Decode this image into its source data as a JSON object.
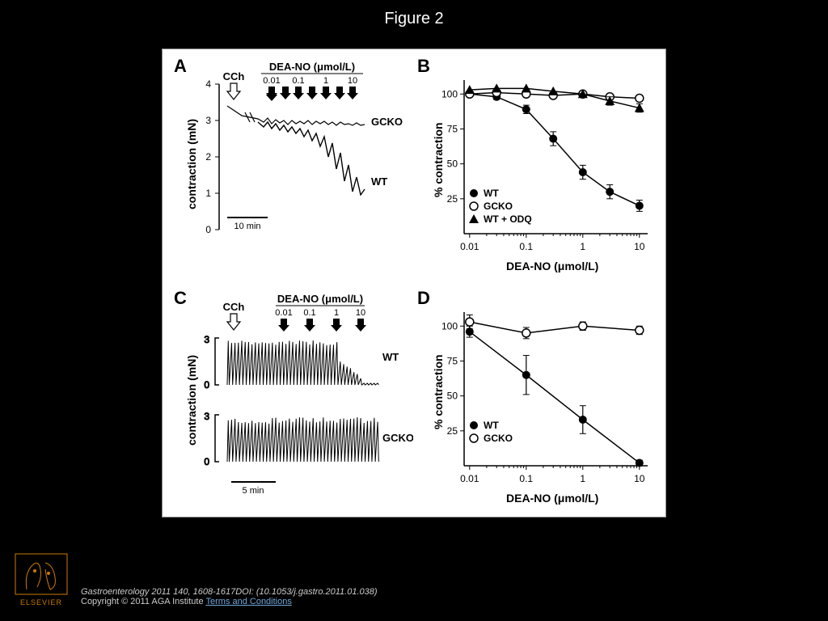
{
  "title": "Figure 2",
  "panels": {
    "A": {
      "label": "A",
      "ylabel": "contraction (mN)",
      "yticks": [
        0,
        1,
        2,
        3,
        4
      ],
      "dose_header": "DEA-NO (μmol/L)",
      "doses": [
        "0.01",
        "0.1",
        "1",
        "10"
      ],
      "cch_label": "CCh",
      "scale_bar": "10 min",
      "trace_labels": {
        "gcko": "GCKO",
        "wt": "WT"
      }
    },
    "B": {
      "label": "B",
      "ylabel": "% contraction",
      "xlabel": "DEA-NO (μmol/L)",
      "yticks": [
        25,
        50,
        75,
        100
      ],
      "xticks": [
        "0.01",
        "0.1",
        "1",
        "10"
      ],
      "legend": [
        "WT",
        "GCKO",
        "WT + ODQ"
      ],
      "series": {
        "WT": {
          "x": [
            0.01,
            0.03,
            0.1,
            0.3,
            1,
            3,
            10
          ],
          "y": [
            100,
            98,
            89,
            68,
            44,
            30,
            20
          ],
          "marker": "filled-circle",
          "err": [
            0,
            2,
            3,
            5,
            5,
            5,
            4
          ]
        },
        "GCKO": {
          "x": [
            0.01,
            0.03,
            0.1,
            0.3,
            1,
            3,
            10
          ],
          "y": [
            100,
            101,
            100,
            99,
            100,
            98,
            97
          ],
          "marker": "open-circle",
          "err": [
            0,
            0,
            0,
            0,
            0,
            0,
            0
          ]
        },
        "WT+ODQ": {
          "x": [
            0.01,
            0.03,
            0.1,
            0.3,
            1,
            3,
            10
          ],
          "y": [
            103,
            104,
            104,
            102,
            100,
            95,
            90
          ],
          "marker": "filled-triangle",
          "err": [
            0,
            0,
            0,
            0,
            0,
            3,
            3
          ]
        }
      },
      "xlim": [
        0.008,
        14
      ],
      "ylim": [
        0,
        110
      ]
    },
    "C": {
      "label": "C",
      "ylabel": "contraction (mN)",
      "yticks": [
        0,
        3
      ],
      "dose_header": "DEA-NO (μmol/L)",
      "doses": [
        "0.01",
        "0.1",
        "1",
        "10"
      ],
      "cch_label": "CCh",
      "scale_bar": "5 min",
      "trace_labels": {
        "wt": "WT",
        "gcko": "GCKO"
      }
    },
    "D": {
      "label": "D",
      "ylabel": "% contraction",
      "xlabel": "DEA-NO (μmol/L)",
      "yticks": [
        25,
        50,
        75,
        100
      ],
      "xticks": [
        "0.01",
        "0.1",
        "1",
        "10"
      ],
      "legend": [
        "WT",
        "GCKO"
      ],
      "series": {
        "WT": {
          "x": [
            0.01,
            0.1,
            1,
            10
          ],
          "y": [
            96,
            65,
            33,
            2
          ],
          "marker": "filled-circle",
          "err": [
            4,
            14,
            10,
            2
          ]
        },
        "GCKO": {
          "x": [
            0.01,
            0.1,
            1,
            10
          ],
          "y": [
            103,
            95,
            100,
            97
          ],
          "marker": "open-circle",
          "err": [
            5,
            4,
            3,
            3
          ]
        }
      },
      "xlim": [
        0.008,
        14
      ],
      "ylim": [
        0,
        110
      ]
    }
  },
  "citation_line": "Gastroenterology 2011 140, 1608-1617DOI: (10.1053/j.gastro.2011.01.038)",
  "copyright_prefix": "Copyright © 2011 AGA Institute ",
  "terms_link": "Terms and Conditions",
  "publisher": "ELSEVIER",
  "colors": {
    "bg": "#000000",
    "figure_bg": "#ffffff",
    "axis": "#000000",
    "marker_fill": "#000000",
    "marker_open_stroke": "#000000",
    "link": "#6fa8dc",
    "logo": "#cc7a00"
  },
  "label_fontsize": 14,
  "tick_fontsize": 12
}
